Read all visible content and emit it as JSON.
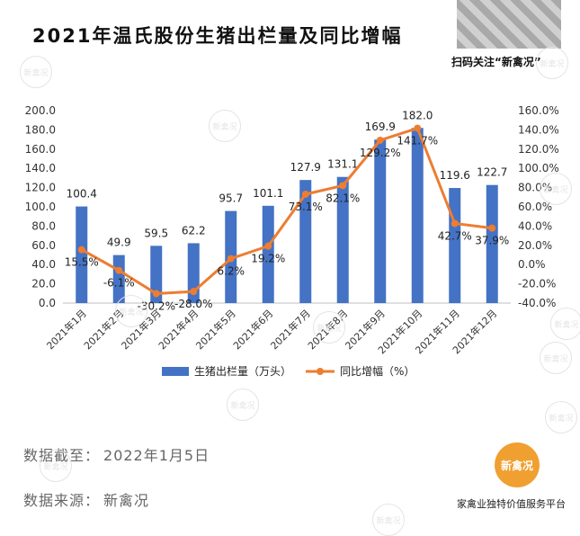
{
  "header": {
    "title": "2021年温氏股份生猪出栏量及同比增幅",
    "scan_note": "扫码关注“新禽况”"
  },
  "chart_data": {
    "type": "bar",
    "categories": [
      "2021年1月",
      "2021年2月",
      "2021年3月",
      "2021年4月",
      "2021年5月",
      "2021年6月",
      "2021年7月",
      "2021年8月",
      "2021年9月",
      "2021年10月",
      "2021年11月",
      "2021年12月"
    ],
    "series": [
      {
        "name": "生猪出栏量（万头）",
        "type": "bar",
        "axis": "left",
        "values": [
          100.4,
          49.9,
          59.5,
          62.2,
          95.7,
          101.1,
          127.9,
          131.1,
          169.9,
          182.0,
          119.6,
          122.7
        ],
        "labels": [
          "100.4",
          "49.9",
          "59.5",
          "62.2",
          "95.7",
          "101.1",
          "127.9",
          "131.1",
          "169.9",
          "182.0",
          "119.6",
          "122.7"
        ]
      },
      {
        "name": "同比增幅（%）",
        "type": "line",
        "axis": "right",
        "values": [
          15.5,
          -6.1,
          -30.2,
          -28.0,
          6.2,
          19.2,
          73.1,
          82.1,
          129.2,
          141.7,
          42.7,
          37.9
        ],
        "labels": [
          "15.5%",
          "-6.1%",
          "-30.2%",
          "-28.0%",
          "6.2%",
          "19.2%",
          "73.1%",
          "82.1%",
          "129.2%",
          "141.7%",
          "42.7%",
          "37.9%"
        ]
      }
    ],
    "ylim": [
      0,
      200
    ],
    "yticks": [
      "0.0",
      "20.0",
      "40.0",
      "60.0",
      "80.0",
      "100.0",
      "120.0",
      "140.0",
      "160.0",
      "180.0",
      "200.0"
    ],
    "y2lim": [
      -40,
      160
    ],
    "y2ticks": [
      "-40.0%",
      "-20.0%",
      "0.0%",
      "20.0%",
      "40.0%",
      "60.0%",
      "80.0%",
      "100.0%",
      "120.0%",
      "140.0%",
      "160.0%"
    ],
    "legend_position": "bottom",
    "grid": false,
    "colors": {
      "bar": "#4472c4",
      "line": "#ed7d31"
    }
  },
  "footer": {
    "date_key": "数据截至：",
    "date_value": "2022年1月5日",
    "source_key": "数据来源：",
    "source_value": "新禽况",
    "logo_text": "新禽况",
    "slogan": "家禽业独特价值服务平台"
  },
  "watermark_text": "新禽况"
}
